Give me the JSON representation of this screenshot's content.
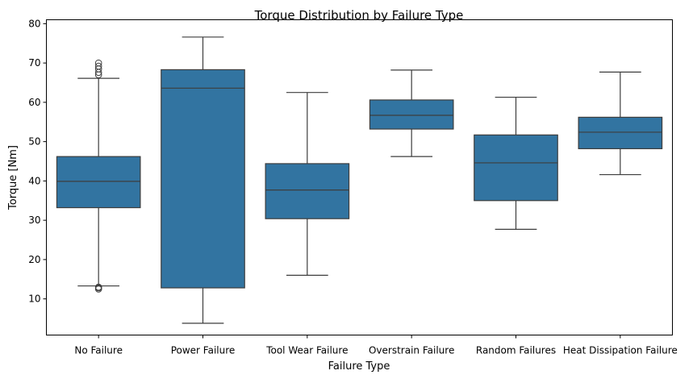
{
  "chart_data": {
    "type": "box",
    "title": "Torque Distribution by Failure Type",
    "xlabel": "Failure Type",
    "ylabel": "Torque [Nm]",
    "ylim": [
      0.8,
      81.0
    ],
    "yticks": [
      10,
      20,
      30,
      40,
      50,
      60,
      70,
      80
    ],
    "grid": false,
    "legend": "none",
    "box_color": "#3274a1",
    "line_color": "#3d3d3d",
    "categories": [
      "No Failure",
      "Power Failure",
      "Tool Wear Failure",
      "Overstrain Failure",
      "Random Failures",
      "Heat Dissipation Failure"
    ],
    "boxes": [
      {
        "category": "No Failure",
        "whisker_low": 13.3,
        "q1": 33.2,
        "median": 39.9,
        "q3": 46.2,
        "whisker_high": 66.1,
        "outliers": [
          12.5,
          12.8,
          13.0,
          67.0,
          67.6,
          68.5,
          69.2,
          70.0
        ]
      },
      {
        "category": "Power Failure",
        "whisker_low": 3.8,
        "q1": 12.8,
        "median": 63.6,
        "q3": 68.3,
        "whisker_high": 76.6,
        "outliers": []
      },
      {
        "category": "Tool Wear Failure",
        "whisker_low": 16.0,
        "q1": 30.4,
        "median": 37.7,
        "q3": 44.4,
        "whisker_high": 62.5,
        "outliers": []
      },
      {
        "category": "Overstrain Failure",
        "whisker_low": 46.2,
        "q1": 53.2,
        "median": 56.7,
        "q3": 60.6,
        "whisker_high": 68.2,
        "outliers": []
      },
      {
        "category": "Random Failures",
        "whisker_low": 27.7,
        "q1": 35.0,
        "median": 44.6,
        "q3": 51.7,
        "whisker_high": 61.3,
        "outliers": []
      },
      {
        "category": "Heat Dissipation Failure",
        "whisker_low": 41.6,
        "q1": 48.2,
        "median": 52.4,
        "q3": 56.2,
        "whisker_high": 67.7,
        "outliers": []
      }
    ]
  }
}
